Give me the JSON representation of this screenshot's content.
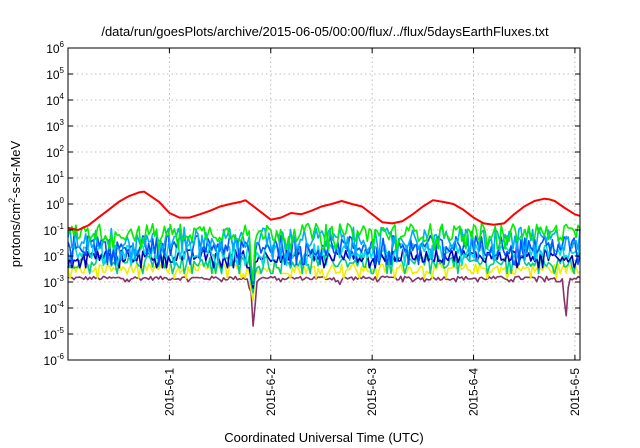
{
  "chart_data": {
    "type": "line",
    "title": "/data/run/goesPlots/archive/2015-06-05/00:00/flux/../flux/5daysEarthFluxes.txt",
    "xlabel": "Coordinated Universal Time (UTC)",
    "ylabel": "protons/cm²-s-sr-MeV",
    "ylabel_parts": {
      "before": "protons/cm",
      "sup": "2",
      "after": "-s-sr-MeV"
    },
    "x_axis": {
      "unit": "days",
      "xlim": [
        "2015-05-31 00:00",
        "2015-06-05 00:00"
      ],
      "xlim_days": [
        0,
        5.05
      ],
      "ticks": [
        {
          "day": 1,
          "label": "2015-6-1"
        },
        {
          "day": 2,
          "label": "2015-6-2"
        },
        {
          "day": 3,
          "label": "2015-6-3"
        },
        {
          "day": 4,
          "label": "2015-6-4"
        },
        {
          "day": 5,
          "label": "2015-6-5"
        }
      ],
      "grid": true
    },
    "y_axis": {
      "scale": "log",
      "ylim": [
        1e-06,
        1000000.0
      ],
      "ticks": [
        {
          "exp": -6,
          "base": "10",
          "sup": "-6"
        },
        {
          "exp": -5,
          "base": "10",
          "sup": "-5"
        },
        {
          "exp": -4,
          "base": "10",
          "sup": "-4"
        },
        {
          "exp": -3,
          "base": "10",
          "sup": "-3"
        },
        {
          "exp": -2,
          "base": "10",
          "sup": "-2"
        },
        {
          "exp": -1,
          "base": "10",
          "sup": "-1"
        },
        {
          "exp": 0,
          "base": "10",
          "sup": "0"
        },
        {
          "exp": 1,
          "base": "10",
          "sup": "1"
        },
        {
          "exp": 2,
          "base": "10",
          "sup": "2"
        },
        {
          "exp": 3,
          "base": "10",
          "sup": "3"
        },
        {
          "exp": 4,
          "base": "10",
          "sup": "4"
        },
        {
          "exp": 5,
          "base": "10",
          "sup": "5"
        },
        {
          "exp": 6,
          "base": "10",
          "sup": "6"
        }
      ],
      "grid": true
    },
    "series": [
      {
        "color": "#ff0000",
        "points": [
          [
            0.0,
            0.12
          ],
          [
            0.1,
            0.1
          ],
          [
            0.2,
            0.15
          ],
          [
            0.3,
            0.3
          ],
          [
            0.4,
            0.6
          ],
          [
            0.5,
            1.2
          ],
          [
            0.6,
            2.0
          ],
          [
            0.7,
            2.8
          ],
          [
            0.75,
            3.0
          ],
          [
            0.8,
            2.2
          ],
          [
            0.9,
            1.2
          ],
          [
            1.0,
            0.45
          ],
          [
            1.1,
            0.3
          ],
          [
            1.2,
            0.3
          ],
          [
            1.3,
            0.4
          ],
          [
            1.4,
            0.55
          ],
          [
            1.5,
            0.8
          ],
          [
            1.6,
            1.0
          ],
          [
            1.7,
            1.2
          ],
          [
            1.75,
            1.4
          ],
          [
            1.8,
            1.0
          ],
          [
            1.9,
            0.5
          ],
          [
            2.0,
            0.25
          ],
          [
            2.1,
            0.3
          ],
          [
            2.2,
            0.45
          ],
          [
            2.3,
            0.4
          ],
          [
            2.4,
            0.55
          ],
          [
            2.5,
            0.8
          ],
          [
            2.6,
            1.0
          ],
          [
            2.7,
            1.3
          ],
          [
            2.8,
            1.0
          ],
          [
            2.9,
            0.8
          ],
          [
            3.0,
            0.4
          ],
          [
            3.1,
            0.2
          ],
          [
            3.2,
            0.18
          ],
          [
            3.3,
            0.22
          ],
          [
            3.4,
            0.4
          ],
          [
            3.5,
            0.8
          ],
          [
            3.6,
            1.4
          ],
          [
            3.7,
            1.2
          ],
          [
            3.8,
            1.0
          ],
          [
            3.9,
            0.6
          ],
          [
            4.0,
            0.3
          ],
          [
            4.1,
            0.18
          ],
          [
            4.2,
            0.16
          ],
          [
            4.3,
            0.18
          ],
          [
            4.4,
            0.4
          ],
          [
            4.5,
            0.8
          ],
          [
            4.6,
            1.3
          ],
          [
            4.7,
            1.6
          ],
          [
            4.75,
            1.5
          ],
          [
            4.8,
            1.3
          ],
          [
            4.9,
            0.7
          ],
          [
            5.0,
            0.4
          ],
          [
            5.05,
            0.35
          ]
        ]
      },
      {
        "color": "#00ee00",
        "base": 0.08,
        "amp": 0.7,
        "dips": [
          [
            1.82,
            0.0004
          ]
        ]
      },
      {
        "color": "#00aaff",
        "base": 0.045,
        "amp": 0.9,
        "dips": [
          [
            1.82,
            0.0006
          ]
        ]
      },
      {
        "color": "#0055ff",
        "base": 0.025,
        "amp": 0.8,
        "dips": [
          [
            1.82,
            0.0004
          ]
        ]
      },
      {
        "color": "#00dddd",
        "base": 0.015,
        "amp": 0.6,
        "dips": [
          [
            1.82,
            0.0004
          ]
        ]
      },
      {
        "color": "#0000bb",
        "base": 0.01,
        "amp": 0.5,
        "dips": [
          [
            1.82,
            0.0003
          ]
        ]
      },
      {
        "color": "#00cc88",
        "base": 0.006,
        "amp": 0.5,
        "dips": [
          [
            1.82,
            0.0002
          ]
        ]
      },
      {
        "color": "#eeee00",
        "base": 0.0032,
        "amp": 0.4,
        "dips": [
          [
            1.82,
            0.0001
          ]
        ]
      },
      {
        "color": "#883366",
        "base": 0.0014,
        "amp": 0.15,
        "dips": [
          [
            1.8,
            0.0003
          ],
          [
            1.83,
            1e-05
          ],
          [
            2.68,
            0.0008
          ],
          [
            4.91,
            3e-05
          ]
        ]
      }
    ]
  }
}
